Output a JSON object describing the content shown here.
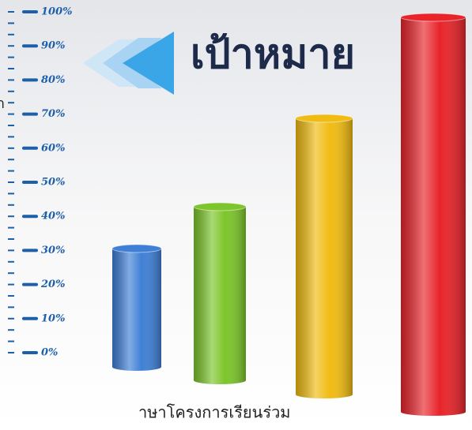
{
  "chart_data": {
    "type": "bar",
    "title": "เป้าหมาย",
    "caption": "าษาโครงการเรียนร่วม",
    "side_text": "า",
    "categories": [
      null,
      null,
      null,
      null
    ],
    "values": [
      30,
      44,
      70,
      100
    ],
    "colors": [
      "#3f7fd6",
      "#7cc52a",
      "#f0bb12",
      "#e8242a"
    ],
    "ylim": [
      0,
      100
    ],
    "yticks": [
      {
        "value": 0,
        "label": "0%"
      },
      {
        "value": 10,
        "label": "10%"
      },
      {
        "value": 20,
        "label": "20%"
      },
      {
        "value": 30,
        "label": "30%"
      },
      {
        "value": 40,
        "label": "40%"
      },
      {
        "value": 50,
        "label": "50%"
      },
      {
        "value": 60,
        "label": "60%"
      },
      {
        "value": 70,
        "label": "70%"
      },
      {
        "value": 80,
        "label": "80%"
      },
      {
        "value": 90,
        "label": "90%"
      },
      {
        "value": 100,
        "label": "100%"
      }
    ]
  }
}
